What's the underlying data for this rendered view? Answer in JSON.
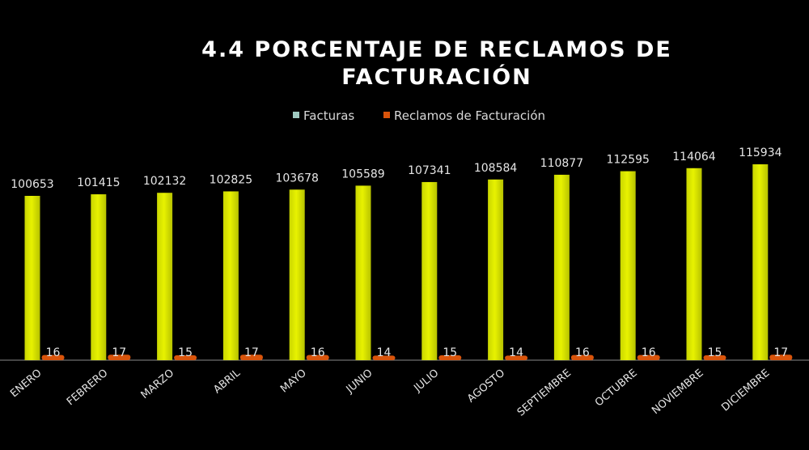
{
  "chart_data": {
    "type": "bar",
    "title_line1": "4.4 PORCENTAJE DE RECLAMOS DE",
    "title_line2": "FACTURACIÓN",
    "categories": [
      "ENERO",
      "FEBRERO",
      "MARZO",
      "ABRIL",
      "MAYO",
      "JUNIO",
      "JULIO",
      "AGOSTO",
      "SEPTIEMBRE",
      "OCTUBRE",
      "NOVIEMBRE",
      "DICIEMBRE"
    ],
    "series": [
      {
        "name": "Facturas",
        "color": "#e8f200",
        "values": [
          100653,
          101415,
          102132,
          102825,
          103678,
          105589,
          107341,
          108584,
          110877,
          112595,
          114064,
          115934
        ]
      },
      {
        "name": "Reclamos de Facturación",
        "color": "#d9540b",
        "values": [
          16,
          17,
          15,
          17,
          16,
          14,
          15,
          14,
          16,
          16,
          15,
          17
        ]
      }
    ],
    "legend_position": "top-center",
    "grid": false,
    "ylim": [
      0,
      120000
    ]
  }
}
